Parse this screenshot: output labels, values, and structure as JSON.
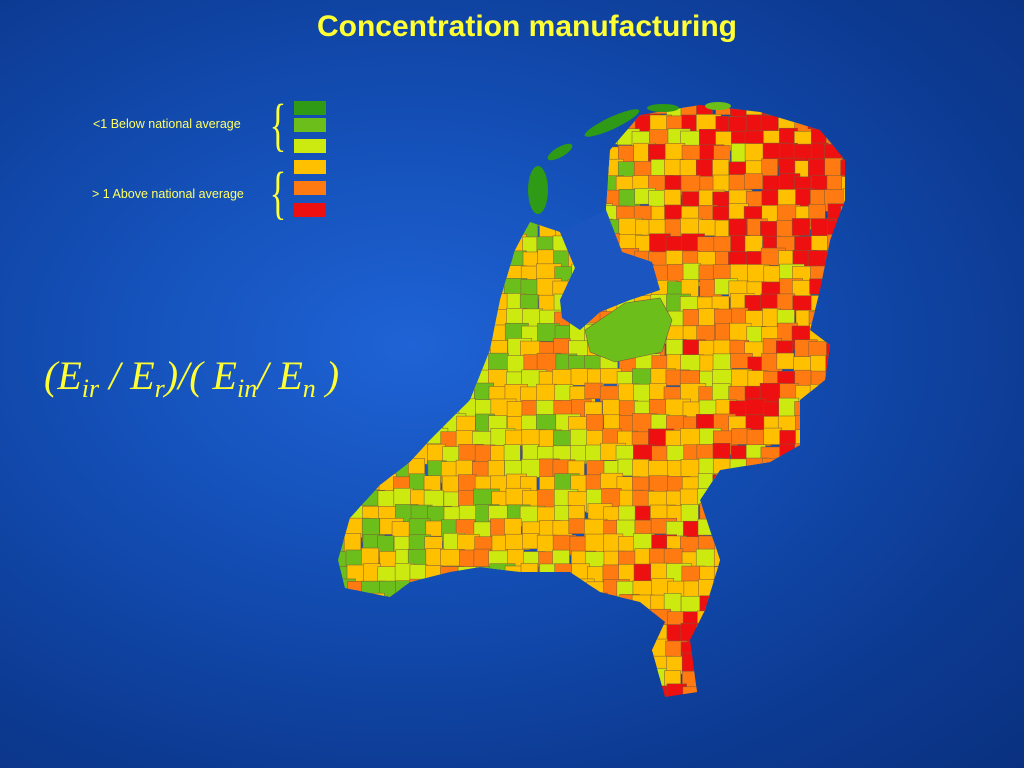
{
  "title": "Concentration manufacturing",
  "legend": {
    "below_label": "<1 Below national average",
    "above_label": "> 1 Above national average",
    "colors": [
      "#2e9a16",
      "#6cbf1a",
      "#ccea10",
      "#ffc000",
      "#ff7a10",
      "#ee1010"
    ]
  },
  "formula": {
    "open": "(E",
    "sub1": "ir",
    "mid1": " / E",
    "sub2": "r",
    "mid2": ")/( E",
    "sub3": "in",
    "mid3": "/ E",
    "sub4": "n",
    "close": " )"
  },
  "map": {
    "region": "Netherlands municipalities",
    "water_color": "#1a55c0",
    "border_color": "#7a5a3a"
  }
}
